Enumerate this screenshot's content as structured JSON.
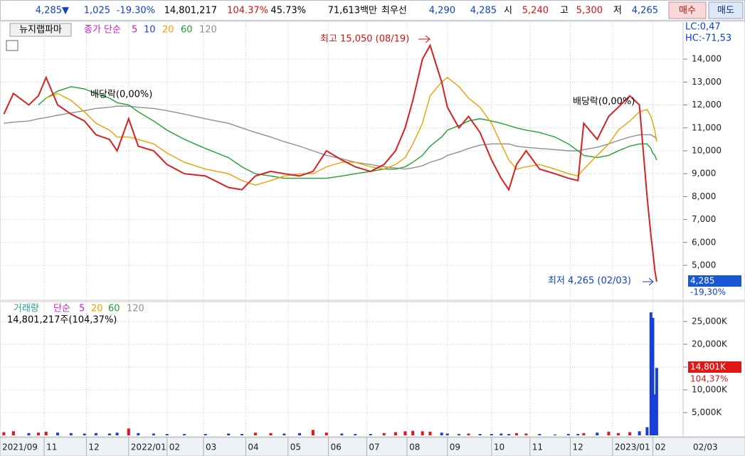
{
  "header": {
    "items": [
      "4,285▼",
      "1,025",
      "-19.30%",
      "14,801,217",
      "104.37%",
      "45.73%",
      "71,613백만",
      "최우선",
      "4,290",
      "4,285",
      "시",
      "5,240",
      "고",
      "5,300",
      "저",
      "4,265"
    ],
    "buttons": [
      "매수",
      "매도"
    ]
  },
  "chart_data": [
    {
      "type": "line",
      "name": "뉴지랩파마",
      "legend_title": "종가 단순",
      "legend_extra": [
        "5",
        "10"
      ],
      "x": [
        2,
        7,
        15,
        20,
        24,
        30,
        37,
        44,
        50,
        57,
        61,
        67,
        72,
        80,
        87,
        96,
        107,
        119,
        126,
        133,
        141,
        148,
        156,
        163,
        170,
        178,
        185,
        193,
        200,
        206,
        211,
        215,
        220,
        224,
        230,
        233,
        239,
        244,
        250,
        256,
        261,
        265,
        269,
        274,
        281,
        289,
        296,
        301,
        304,
        311,
        317,
        322,
        328,
        333,
        337,
        339,
        340,
        341,
        342
      ],
      "series": [
        {
          "color": "#d82020",
          "values": [
            11600,
            12500,
            12000,
            12400,
            13200,
            12000,
            11600,
            11300,
            10700,
            10500,
            10000,
            11400,
            10200,
            10000,
            9400,
            9000,
            8900,
            8400,
            8300,
            8900,
            9100,
            9000,
            8900,
            9100,
            10000,
            9600,
            9300,
            9100,
            9400,
            10000,
            11000,
            12200,
            14000,
            14600,
            13000,
            11900,
            11000,
            11500,
            10800,
            9600,
            8800,
            8300,
            9400,
            10000,
            9200,
            9000,
            8800,
            8700,
            11200,
            10500,
            11500,
            11900,
            12400,
            12000,
            8000,
            6300,
            5600,
            4800,
            4285
          ]
        },
        {
          "name": "20",
          "color": "#f0a000",
          "values": [
            null,
            null,
            null,
            null,
            12300,
            12500,
            12200,
            11700,
            11200,
            10900,
            10600,
            10600,
            10500,
            10300,
            9900,
            9500,
            9200,
            9000,
            8700,
            8500,
            8700,
            8900,
            9000,
            9000,
            9300,
            9500,
            9500,
            9300,
            9200,
            9400,
            9700,
            10300,
            11200,
            12400,
            13000,
            13200,
            12800,
            12300,
            11900,
            11200,
            10300,
            9600,
            9200,
            9300,
            9400,
            9200,
            9000,
            8900,
            9200,
            9800,
            10300,
            10900,
            11300,
            11700,
            11800,
            11500,
            11200,
            10900,
            10400
          ]
        },
        {
          "name": "60",
          "color": "#20a030",
          "values": [
            null,
            null,
            null,
            12000,
            12300,
            12600,
            12800,
            12700,
            12500,
            12300,
            12100,
            12000,
            11700,
            11300,
            10900,
            10500,
            10100,
            9700,
            9300,
            9000,
            8900,
            8800,
            8800,
            8800,
            8800,
            8900,
            9000,
            9100,
            9200,
            9200,
            9300,
            9500,
            9800,
            10200,
            10600,
            10900,
            11100,
            11300,
            11400,
            11300,
            11200,
            11100,
            11000,
            10900,
            10800,
            10600,
            10300,
            10000,
            9800,
            9700,
            9800,
            10000,
            10200,
            10300,
            10300,
            10100,
            9900,
            9800,
            9600
          ]
        },
        {
          "name": "120",
          "color": "#909090",
          "values": [
            11200,
            11250,
            11300,
            11400,
            11450,
            11550,
            11650,
            11750,
            11850,
            11900,
            11950,
            11950,
            11900,
            11850,
            11750,
            11600,
            11400,
            11200,
            11000,
            10800,
            10600,
            10400,
            10200,
            10000,
            9800,
            9650,
            9500,
            9400,
            9300,
            9250,
            9200,
            9250,
            9350,
            9500,
            9650,
            9800,
            9950,
            10100,
            10250,
            10300,
            10300,
            10300,
            10200,
            10150,
            10100,
            10050,
            10000,
            10000,
            10050,
            10150,
            10300,
            10450,
            10600,
            10700,
            10700,
            10700,
            10650,
            10600,
            10500
          ]
        }
      ],
      "xlim": [
        0,
        355
      ],
      "ylim": [
        3540,
        15650
      ],
      "yticks": [
        {
          "value": 5000,
          "label": "5,000"
        },
        {
          "value": 6000,
          "label": "6,000"
        },
        {
          "value": 7000,
          "label": "7,000"
        },
        {
          "value": 8000,
          "label": "8,000"
        },
        {
          "value": 9000,
          "label": "9,000"
        },
        {
          "value": 10000,
          "label": "10,000"
        },
        {
          "value": 11000,
          "label": "11,000"
        },
        {
          "value": 12000,
          "label": "12,000"
        },
        {
          "value": 13000,
          "label": "13,000"
        },
        {
          "value": 14000,
          "label": "14,000"
        }
      ],
      "grid": true,
      "annotations": [
        "배당락(0,00%)",
        "배당락(0,00%)",
        "최고 15,050 (08/19)",
        "최저 4,265 (02/03)",
        "LC:0,47",
        "HC:-71,53"
      ],
      "last_label": "4,285",
      "last_change": "-19,30%"
    },
    {
      "type": "bar",
      "legend_title": "거래량",
      "legend_sub": "단순",
      "legend_extra": [
        "5",
        "20",
        "60",
        "120"
      ],
      "subtitle": "14,801,217주(104,37%)",
      "values": [
        700,
        900,
        500,
        600,
        800,
        600,
        500,
        400,
        500,
        400,
        600,
        1500,
        500,
        400,
        300,
        300,
        300,
        400,
        300,
        600,
        500,
        400,
        500,
        1200,
        600,
        400,
        300,
        300,
        500,
        700,
        900,
        1000,
        900,
        800,
        600,
        400,
        300,
        400,
        300,
        300,
        400,
        300,
        500,
        400,
        300,
        200,
        300,
        300,
        500,
        600,
        800,
        500,
        700,
        900,
        1800,
        27000,
        25800,
        9000,
        14801
      ],
      "ylim": [
        0,
        29200
      ],
      "yticks": [
        {
          "value": 5000,
          "label": "5,000K"
        },
        {
          "value": 10000,
          "label": "10,000K"
        },
        {
          "value": 15000,
          "label": "15,000K"
        },
        {
          "value": 20000,
          "label": "20,000K"
        },
        {
          "value": 25000,
          "label": "25,000K"
        }
      ],
      "last_label": "14,801K",
      "last_change": "104,37%",
      "xticks": [
        {
          "value": 0,
          "label": "2021/09"
        },
        {
          "value": 23,
          "label": "11"
        },
        {
          "value": 45,
          "label": "12"
        },
        {
          "value": 67,
          "label": "2022/01"
        },
        {
          "value": 87,
          "label": "02"
        },
        {
          "value": 106,
          "label": "03"
        },
        {
          "value": 128,
          "label": "04"
        },
        {
          "value": 150,
          "label": "05"
        },
        {
          "value": 171,
          "label": "06"
        },
        {
          "value": 191,
          "label": "07"
        },
        {
          "value": 212,
          "label": "08"
        },
        {
          "value": 233,
          "label": "09"
        },
        {
          "value": 256,
          "label": "10"
        },
        {
          "value": 276,
          "label": "11"
        },
        {
          "value": 297,
          "label": "12"
        },
        {
          "value": 319,
          "label": "2023/01"
        },
        {
          "value": 340,
          "label": "02"
        }
      ],
      "end_label": "02/03"
    }
  ]
}
